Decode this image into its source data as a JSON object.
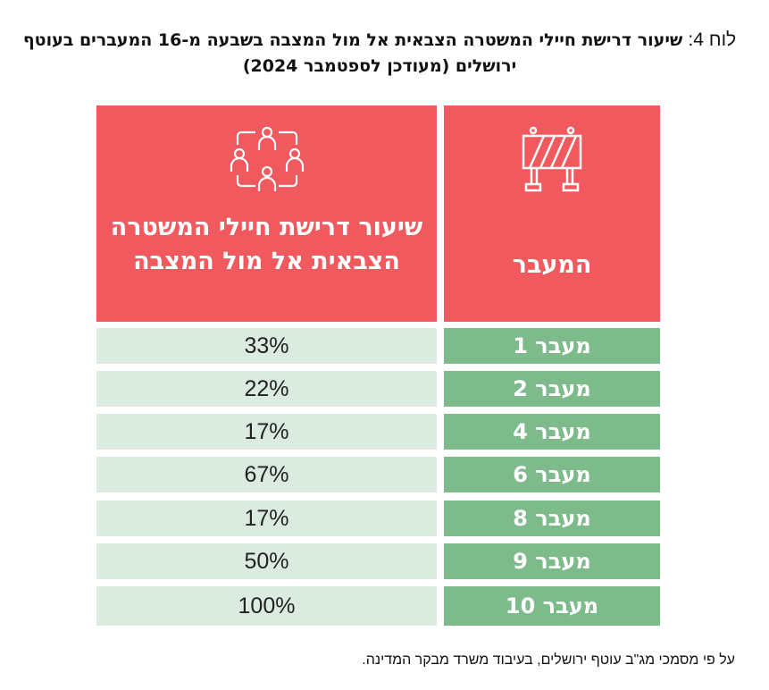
{
  "title": {
    "lead": "לוח 4:",
    "bold": "שיעור דרישת חיילי המשטרה הצבאית אל מול המצבה בשבעה מ-16 המעברים בעוטף ירושלים (מעודכן לספטמבר 2024)"
  },
  "table": {
    "headers": [
      {
        "label": "המעבר",
        "icon": "road-barrier-icon"
      },
      {
        "label": "שיעור דרישת חיילי המשטרה הצבאית אל מול המצבה",
        "icon": "people-network-icon"
      }
    ],
    "rows": [
      {
        "crossing": "מעבר 1",
        "rate": "33%"
      },
      {
        "crossing": "מעבר 2",
        "rate": "22%"
      },
      {
        "crossing": "מעבר 4",
        "rate": "17%"
      },
      {
        "crossing": "מעבר 6",
        "rate": "67%"
      },
      {
        "crossing": "מעבר 8",
        "rate": "17%"
      },
      {
        "crossing": "מעבר 9",
        "rate": "50%"
      },
      {
        "crossing": "מעבר 10",
        "rate": "100%"
      }
    ]
  },
  "colors": {
    "header": "#f05a5e",
    "crossing_cell": "#7dbb8b",
    "rate_cell": "#dcebdf"
  },
  "footnote": "על פי מסמכי מג\"ב עוטף ירושלים, בעיבוד משרד מבקר המדינה."
}
